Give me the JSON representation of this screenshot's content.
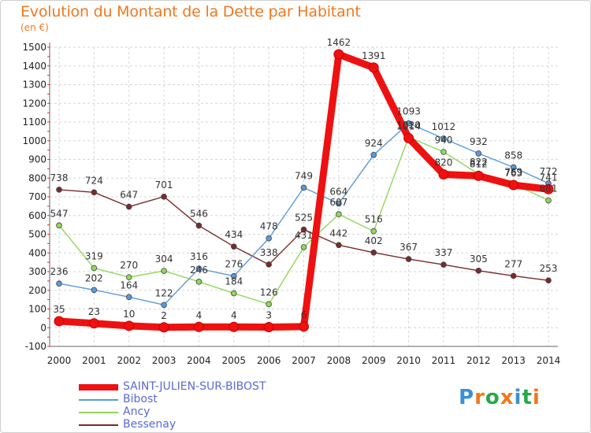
{
  "header": {
    "title": "Evolution du Montant de la Dette par Habitant",
    "unit": "(en €)"
  },
  "logo": {
    "text": "Proxiti",
    "colors": [
      "#3a8fd8",
      "#f0781e",
      "#2aa84a",
      "#f0781e",
      "#3a8fd8",
      "#2aa84a",
      "#f0781e"
    ]
  },
  "chart_data": {
    "type": "line",
    "title": "Evolution du Montant de la Dette par Habitant",
    "ylabel": "(en €)",
    "xlabel": "",
    "x": [
      2000,
      2001,
      2002,
      2003,
      2004,
      2005,
      2006,
      2007,
      2008,
      2009,
      2010,
      2011,
      2012,
      2013,
      2014
    ],
    "yticks": [
      -100,
      0,
      100,
      200,
      300,
      400,
      500,
      600,
      700,
      800,
      900,
      1000,
      1100,
      1200,
      1300,
      1400,
      1500
    ],
    "ylim": [
      -100,
      1500
    ],
    "grid": true,
    "legend_position": "bottom-left",
    "series": [
      {
        "name": "SAINT-JULIEN-SUR-BIBOST",
        "color": "#ee1111",
        "values": [
          35,
          23,
          10,
          2,
          4,
          4,
          3,
          6,
          1462,
          1391,
          1014,
          820,
          812,
          763,
          741
        ],
        "labels": [
          "35",
          "23",
          "10",
          "2",
          "4",
          "4",
          "3",
          "6",
          "1462",
          "1391",
          "1014",
          "820",
          "812",
          "763",
          "741"
        ]
      },
      {
        "name": "Bibost",
        "color": "#5a9ad8",
        "values": [
          236,
          202,
          164,
          122,
          316,
          276,
          478,
          749,
          664,
          924,
          1093,
          1012,
          932,
          858,
          772
        ],
        "labels": [
          "236",
          "202",
          "164",
          "122",
          "316",
          "276",
          "478",
          "749",
          "664",
          "924",
          "1093",
          "1012",
          "932",
          "858",
          "772"
        ]
      },
      {
        "name": "Ancy",
        "color": "#8fd85a",
        "values": [
          547,
          319,
          270,
          304,
          246,
          184,
          126,
          431,
          607,
          516,
          1020,
          940,
          822,
          769,
          681
        ],
        "labels": [
          "547",
          "319",
          "270",
          "304",
          "246",
          "184",
          "126",
          "431",
          "607",
          "516",
          "1020",
          "940",
          "822",
          "769",
          "681"
        ]
      },
      {
        "name": "Bessenay",
        "color": "#7a2a2a",
        "values": [
          738,
          724,
          647,
          701,
          546,
          434,
          338,
          525,
          442,
          402,
          367,
          337,
          305,
          277,
          253
        ],
        "labels": [
          "738",
          "724",
          "647",
          "701",
          "546",
          "434",
          "338",
          "525",
          "442",
          "402",
          "367",
          "337",
          "305",
          "277",
          "253"
        ]
      }
    ]
  }
}
